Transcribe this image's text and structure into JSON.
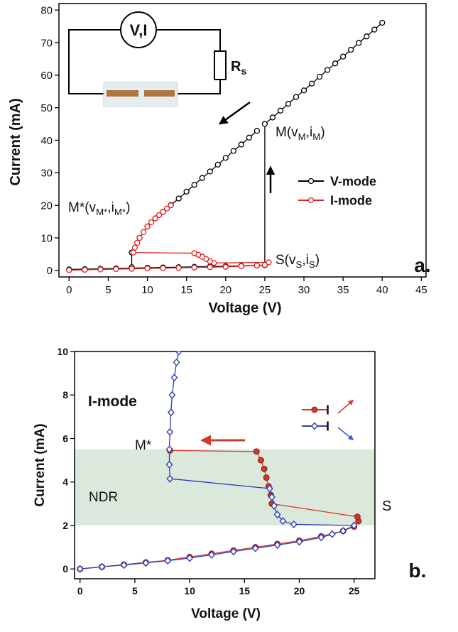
{
  "chart_data": [
    {
      "type": "line",
      "x_label": "Voltage (V)",
      "y_label": "Current (mA)",
      "panel_label": "a.",
      "xlim": [
        -1.3,
        45.6
      ],
      "ylim": [
        -2,
        82
      ],
      "xticks": [
        0,
        5,
        10,
        15,
        20,
        25,
        30,
        35,
        40,
        45
      ],
      "yticks": [
        0,
        10,
        20,
        30,
        40,
        50,
        60,
        70,
        80
      ],
      "series": [
        {
          "name": "V-mode",
          "color": "#000000",
          "marker": "open-circle",
          "x": [
            0,
            2,
            4,
            6,
            8,
            10,
            12,
            14,
            16,
            18,
            20,
            22,
            24,
            25,
            25,
            26,
            27,
            28,
            29,
            30,
            31,
            32,
            33,
            34,
            35,
            36,
            37,
            38,
            39,
            40,
            null,
            24,
            23,
            22,
            21,
            20,
            19,
            18,
            17,
            16,
            15,
            14,
            13,
            12,
            11,
            10,
            9,
            8,
            8
          ],
          "values": [
            0.3,
            0.4,
            0.5,
            0.6,
            0.7,
            0.8,
            0.9,
            1.0,
            1.1,
            1.2,
            1.3,
            1.4,
            1.5,
            1.6,
            45,
            47,
            49.1,
            51.2,
            53.3,
            55.3,
            57.4,
            59.5,
            61.6,
            63.6,
            65.7,
            67.8,
            69.9,
            71.9,
            74,
            76.1,
            null,
            42.9,
            40.8,
            38.7,
            36.7,
            34.6,
            32.5,
            30.4,
            28.4,
            26.3,
            24.2,
            22.1,
            20.1,
            18,
            16,
            13.5,
            10,
            5.5,
            1
          ]
        },
        {
          "name": "I-mode",
          "color": "#e02020",
          "marker": "open-circle",
          "x": [
            0,
            2,
            4,
            6,
            8,
            10,
            12,
            14,
            16,
            18,
            20,
            22,
            24,
            25,
            25.5,
            18.5,
            18,
            17.5,
            17,
            16.5,
            16,
            8.2,
            8.4,
            8.7,
            9,
            9.5,
            10,
            10.5,
            11,
            11.5,
            12,
            12.5,
            13
          ],
          "values": [
            0.1,
            0.2,
            0.3,
            0.4,
            0.5,
            0.6,
            0.7,
            0.8,
            0.9,
            1.0,
            1.1,
            1.3,
            1.5,
            1.7,
            2.5,
            2.3,
            2.8,
            3.5,
            4.2,
            4.8,
            5.3,
            5.5,
            7,
            8.5,
            10,
            11.8,
            13.5,
            14.8,
            16,
            17,
            18,
            19,
            20
          ]
        }
      ],
      "annotations": [
        {
          "parts": [
            "M(v",
            "M",
            ",i",
            "M",
            ")"
          ]
        },
        {
          "parts": [
            "M*(v",
            "M*",
            ",i",
            "M*",
            ")"
          ]
        },
        {
          "parts": [
            "S(v",
            "S",
            ",i",
            "S",
            ")"
          ]
        }
      ],
      "inset": {
        "meter": "V,I",
        "resistor": [
          "R",
          "s"
        ]
      }
    },
    {
      "type": "line",
      "x_label": "Voltage (V)",
      "y_label": "Current (mA)",
      "panel_label": "b.",
      "xlim": [
        -0.5,
        26.9
      ],
      "ylim": [
        -0.45,
        10
      ],
      "xticks": [
        0,
        5,
        10,
        15,
        20,
        25
      ],
      "yticks": [
        0,
        2,
        4,
        6,
        8,
        10
      ],
      "shaded_band": [
        2,
        5.5
      ],
      "band_color": "#dbe8dc",
      "series": [
        {
          "name": "I",
          "color": "#d03a2a",
          "marker": "circle",
          "x": [
            0,
            2,
            4,
            6,
            8,
            10,
            12,
            14,
            16,
            18,
            20,
            22,
            24,
            25,
            25.4,
            25.3,
            17.5,
            17.4,
            17.2,
            17,
            16.8,
            16.5,
            16.1,
            8.2
          ],
          "values": [
            0,
            0.1,
            0.2,
            0.3,
            0.4,
            0.55,
            0.7,
            0.85,
            1.0,
            1.15,
            1.3,
            1.5,
            1.75,
            1.95,
            2.2,
            2.4,
            3.0,
            3.4,
            3.8,
            4.2,
            4.6,
            5.0,
            5.4,
            5.45
          ]
        },
        {
          "name": "I",
          "color": "#2f3db8",
          "marker": "diamond",
          "x": [
            0,
            2,
            4,
            6,
            8,
            10,
            12,
            14,
            16,
            18,
            20,
            22,
            23,
            24,
            25,
            19.5,
            18.5,
            18,
            17.7,
            17.5,
            17.3,
            8.2,
            8.15,
            8.15,
            8.2,
            8.3,
            8.4,
            8.6,
            8.8,
            9
          ],
          "values": [
            0,
            0.1,
            0.18,
            0.28,
            0.38,
            0.5,
            0.65,
            0.8,
            0.95,
            1.1,
            1.25,
            1.45,
            1.6,
            1.75,
            2.0,
            2.05,
            2.2,
            2.5,
            2.9,
            3.3,
            3.7,
            4.15,
            4.8,
            5.5,
            6.3,
            7.2,
            8,
            8.8,
            9.5,
            10
          ]
        }
      ],
      "annotations": [
        {
          "text": "I-mode"
        },
        {
          "text": "M*"
        },
        {
          "text": "NDR"
        },
        {
          "text": "S"
        }
      ]
    }
  ]
}
